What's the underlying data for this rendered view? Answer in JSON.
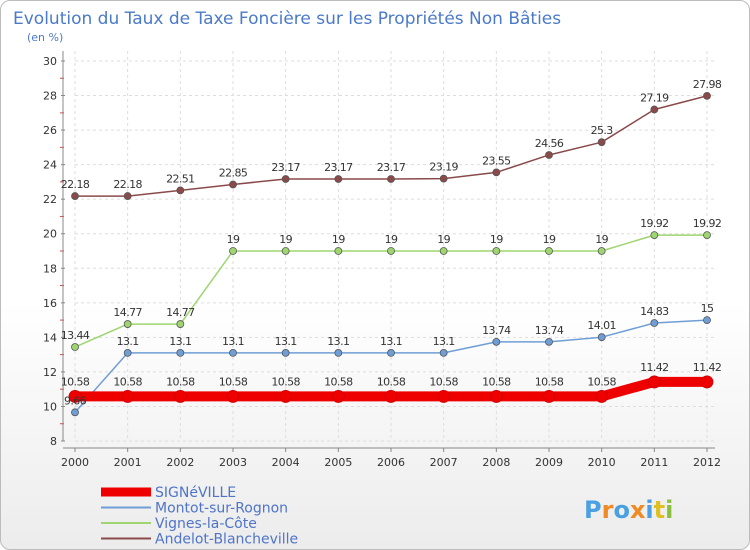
{
  "chart_data": {
    "type": "line",
    "title": "Evolution du Taux de Taxe Foncière sur les Propriétés Non Bâties",
    "unit_label": "(en %)",
    "xlabel": "",
    "ylabel": "",
    "ylim": [
      8,
      30
    ],
    "yticks": [
      8,
      10,
      12,
      14,
      16,
      18,
      20,
      22,
      24,
      26,
      28,
      30
    ],
    "categories": [
      "2000",
      "2001",
      "2002",
      "2003",
      "2004",
      "2005",
      "2006",
      "2007",
      "2008",
      "2009",
      "2010",
      "2011",
      "2012"
    ],
    "grid": true,
    "legend_position": "bottom-left",
    "series": [
      {
        "name": "SIGNéVILLE",
        "color": "#ee0000",
        "values": [
          10.58,
          10.58,
          10.58,
          10.58,
          10.58,
          10.58,
          10.58,
          10.58,
          10.58,
          10.58,
          10.58,
          11.42,
          11.42
        ],
        "labels": [
          "10.58",
          "10.58",
          "10.58",
          "10.58",
          "10.58",
          "10.58",
          "10.58",
          "10.58",
          "10.58",
          "10.58",
          "10.58",
          "11.42",
          "11.42"
        ]
      },
      {
        "name": "Montot-sur-Rognon",
        "color": "#6f9ed6",
        "values": [
          9.66,
          13.1,
          13.1,
          13.1,
          13.1,
          13.1,
          13.1,
          13.1,
          13.74,
          13.74,
          14.01,
          14.83,
          15
        ],
        "labels": [
          "9.66",
          "13.1",
          "13.1",
          "13.1",
          "13.1",
          "13.1",
          "13.1",
          "13.1",
          "13.74",
          "13.74",
          "14.01",
          "14.83",
          "15"
        ]
      },
      {
        "name": "Vignes-la-Côte",
        "color": "#9ed56f",
        "values": [
          13.44,
          14.77,
          14.77,
          19,
          19,
          19,
          19,
          19,
          19,
          19,
          19,
          19.92,
          19.92
        ],
        "labels": [
          "13.44",
          "14.77",
          "14.77",
          "19",
          "19",
          "19",
          "19",
          "19",
          "19",
          "19",
          "19",
          "19.92",
          "19.92"
        ]
      },
      {
        "name": "Andelot-Blancheville",
        "color": "#8a4a4a",
        "values": [
          22.18,
          22.18,
          22.51,
          22.85,
          23.17,
          23.17,
          23.17,
          23.19,
          23.55,
          24.56,
          25.3,
          27.19,
          27.98
        ],
        "labels": [
          "22.18",
          "22.18",
          "22.51",
          "22.85",
          "23.17",
          "23.17",
          "23.17",
          "23.19",
          "23.55",
          "24.56",
          "25.3",
          "27.19",
          "27.98"
        ]
      }
    ]
  },
  "logo": {
    "text": "Proxiti",
    "colors": [
      "#4aa0e0",
      "#f08a24",
      "#4aa0e0",
      "#f08a24",
      "#4aa0e0",
      "#e0c020",
      "#8ac040"
    ]
  }
}
